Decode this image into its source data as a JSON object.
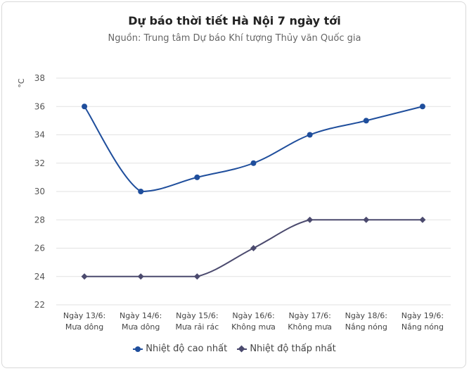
{
  "chart_data": {
    "type": "line",
    "title": "Dự báo thời tiết Hà Nội 7 ngày tới",
    "subtitle": "Nguồn: Trung tâm Dự báo Khí tượng Thủy văn Quốc gia",
    "ylabel": "°C",
    "xlabel": "",
    "ylim": [
      22,
      38
    ],
    "yticks": [
      22,
      24,
      26,
      28,
      30,
      32,
      34,
      36,
      38
    ],
    "grid": true,
    "legend_position": "bottom",
    "categories": [
      [
        "Ngày 13/6:",
        "Mưa dông"
      ],
      [
        "Ngày 14/6:",
        "Mưa dông"
      ],
      [
        "Ngày 15/6:",
        "Mưa rải rác"
      ],
      [
        "Ngày 16/6:",
        "Không mưa"
      ],
      [
        "Ngày 17/6:",
        "Không mưa"
      ],
      [
        "Ngày 18/6:",
        "Nắng nóng"
      ],
      [
        "Ngày 19/6:",
        "Nắng nóng"
      ]
    ],
    "series": [
      {
        "name": "Nhiệt độ cao nhất",
        "values": [
          36,
          30,
          31,
          32,
          34,
          35,
          36
        ],
        "color": "#1f4e9c",
        "marker": "circle"
      },
      {
        "name": "Nhiệt độ thấp nhất",
        "values": [
          24,
          24,
          24,
          26,
          28,
          28,
          28
        ],
        "color": "#4b4a6e",
        "marker": "diamond"
      }
    ]
  }
}
